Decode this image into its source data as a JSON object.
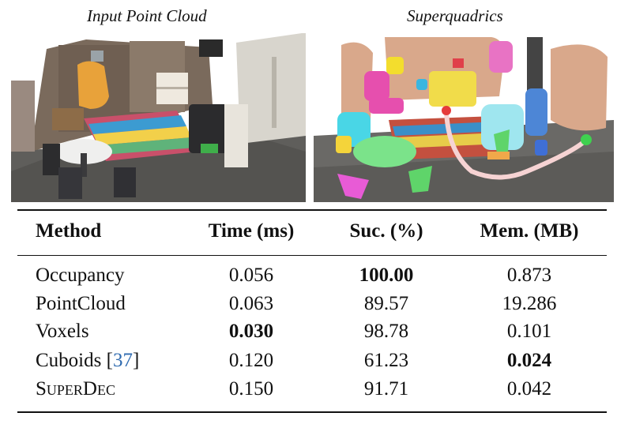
{
  "figure": {
    "left_caption": "Input Point Cloud",
    "right_caption": "Superquadrics"
  },
  "table": {
    "headers": [
      "Method",
      "Time (ms)",
      "Suc. (%)",
      "Mem. (MB)"
    ],
    "rows": [
      {
        "method": "Occupancy",
        "time": "0.056",
        "success": "100.00",
        "memory": "0.873",
        "bold": [
          "success"
        ]
      },
      {
        "method": "PointCloud",
        "time": "0.063",
        "success": "89.57",
        "memory": "19.286",
        "bold": []
      },
      {
        "method": "Voxels",
        "time": "0.030",
        "success": "98.78",
        "memory": "0.101",
        "bold": [
          "time"
        ]
      },
      {
        "method": "Cuboids",
        "citation": "37",
        "time": "0.120",
        "success": "61.23",
        "memory": "0.024",
        "bold": [
          "memory"
        ]
      },
      {
        "method": "SuperDec",
        "time": "0.150",
        "success": "91.71",
        "memory": "0.042",
        "bold": []
      }
    ]
  },
  "colors": {
    "citation_link": "#2f6bb0"
  }
}
